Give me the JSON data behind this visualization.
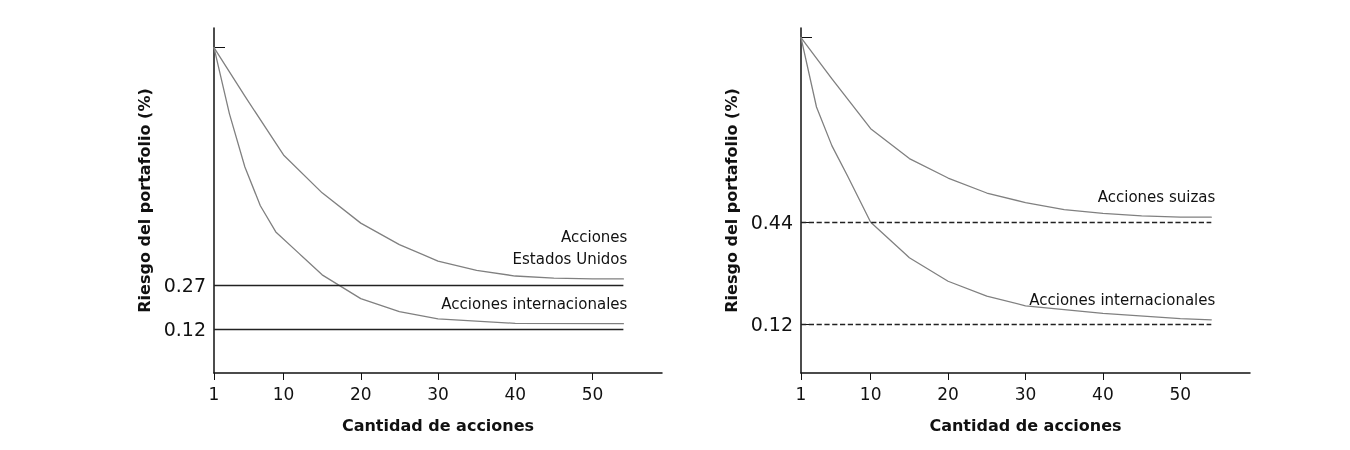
{
  "chart_data": [
    {
      "type": "line",
      "xlabel": "Cantidad de acciones",
      "ylabel": "Riesgo del portafolio (%)",
      "xlim": [
        1,
        59
      ],
      "xticks": [
        1,
        10,
        20,
        30,
        40,
        50
      ],
      "ylim": [
        -0.03,
        1.144
      ],
      "yticks": [
        {
          "value": 1.077,
          "label": null
        },
        0.27,
        0.12
      ],
      "grid": false,
      "marker": "none",
      "line_style": "solid",
      "series": [
        {
          "name": "Acciones\nEstados Unidos",
          "color": "#808080",
          "x": [
            1,
            5,
            10,
            15,
            20,
            25,
            30,
            35,
            40,
            45,
            50,
            54
          ],
          "values": [
            1.077,
            0.912,
            0.712,
            0.583,
            0.48,
            0.407,
            0.351,
            0.319,
            0.3,
            0.293,
            0.29,
            0.29
          ]
        },
        {
          "name": "Acciones internacionales",
          "color": "#808080",
          "x": [
            1,
            3,
            5,
            7,
            9,
            12,
            15,
            20,
            25,
            30,
            40,
            54
          ],
          "values": [
            1.077,
            0.852,
            0.671,
            0.539,
            0.45,
            0.377,
            0.304,
            0.223,
            0.179,
            0.154,
            0.139,
            0.138
          ]
        }
      ],
      "ref_lines": [
        {
          "axis": "y",
          "value": 0.27,
          "color": "#222222",
          "line_style": "solid"
        },
        {
          "axis": "y",
          "value": 0.12,
          "color": "#222222",
          "line_style": "solid"
        }
      ]
    },
    {
      "type": "line",
      "xlabel": "Cantidad de acciones",
      "ylabel": "Riesgo del portafolio (%)",
      "xlim": [
        1,
        59
      ],
      "xticks": [
        1,
        10,
        20,
        30,
        40,
        50
      ],
      "ylim": [
        -0.033,
        1.05
      ],
      "yticks": [
        {
          "value": 1.02,
          "label": null
        },
        0.44,
        0.12
      ],
      "grid": false,
      "marker": "none",
      "line_style": "solid",
      "series": [
        {
          "name": "Acciones suizas",
          "color": "#808080",
          "x": [
            1,
            5,
            10,
            15,
            20,
            25,
            30,
            35,
            40,
            45,
            50,
            54
          ],
          "values": [
            1.02,
            0.89,
            0.734,
            0.64,
            0.579,
            0.532,
            0.502,
            0.48,
            0.468,
            0.46,
            0.456,
            0.456
          ]
        },
        {
          "name": "Acciones internacionales",
          "color": "#808080",
          "x": [
            1,
            3,
            5,
            7,
            10,
            15,
            20,
            25,
            30,
            40,
            50,
            54
          ],
          "values": [
            1.02,
            0.802,
            0.68,
            0.586,
            0.44,
            0.329,
            0.255,
            0.208,
            0.178,
            0.154,
            0.138,
            0.134
          ]
        }
      ],
      "ref_lines": [
        {
          "axis": "y",
          "value": 0.44,
          "color": "#222222",
          "line_style": "dashed"
        },
        {
          "axis": "y",
          "value": 0.12,
          "color": "#222222",
          "line_style": "dashed"
        }
      ]
    }
  ]
}
